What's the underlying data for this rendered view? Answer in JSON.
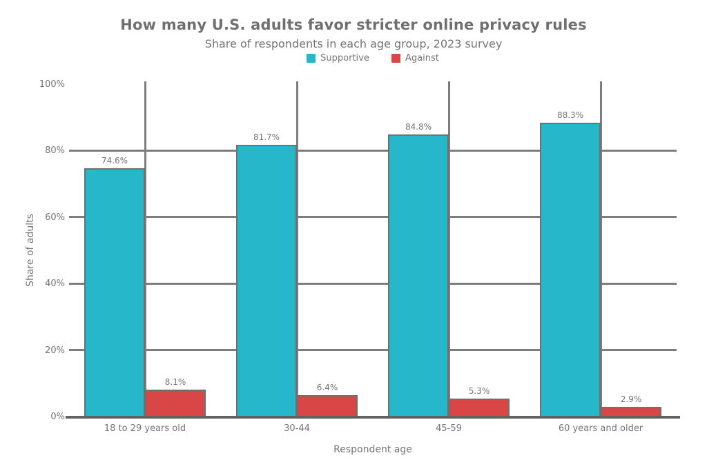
{
  "header": {
    "title_line1": "How many U.S. adults favor stricter online privacy rules",
    "subtitle": "Share of respondents in each age group, 2023 survey"
  },
  "colors": {
    "teal_series": "#26b7cb",
    "red_series": "#d94646",
    "text_gray": "#757575",
    "grid_gray": "#7d7d7d",
    "axis_gray": "#616161",
    "background": "#ffffff"
  },
  "chart_data": {
    "type": "bar",
    "title": "How many U.S. adults favor stricter online privacy rules",
    "subtitle": "Share of respondents in each age group, 2023 survey",
    "categories": [
      "18 to 29 years old",
      "30-44",
      "45-59",
      "60 years and older"
    ],
    "series": [
      {
        "name": "Supportive",
        "color": "#26b7cb",
        "values": [
          74.6,
          81.7,
          84.8,
          88.3
        ],
        "labels": [
          "74.6%",
          "81.7%",
          "84.8%",
          "88.3%"
        ]
      },
      {
        "name": "Against",
        "color": "#d94646",
        "values": [
          8.1,
          6.4,
          5.3,
          2.9
        ],
        "labels": [
          "8.1%",
          "6.4%",
          "5.3%",
          "2.9%"
        ]
      }
    ],
    "xlabel": "Respondent age",
    "ylabel": "Share of adults",
    "yticks": [
      "0%",
      "20%",
      "40%",
      "60%",
      "80%",
      "100%"
    ],
    "ytick_values": [
      0,
      20,
      40,
      60,
      80,
      100
    ],
    "ylim": [
      0,
      100
    ],
    "grid": true,
    "legend_position": "top-center",
    "bar_value_labels": "outside"
  }
}
